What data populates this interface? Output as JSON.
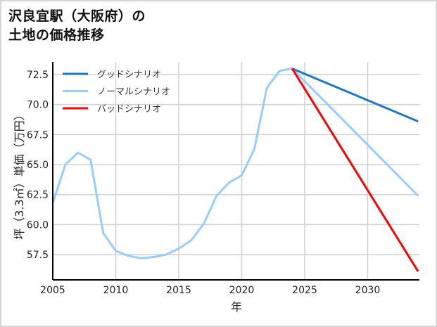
{
  "header": {
    "title_line1": "沢良宜駅（大阪府）の",
    "title_line2": "土地の価格推移"
  },
  "chart_data": {
    "type": "line",
    "title": "沢良宜駅（大阪府）の土地の価格推移",
    "xlabel": "年",
    "ylabel": "坪（3.3㎡）単価（万円）",
    "xlim": [
      2005,
      2034
    ],
    "ylim": [
      55.3,
      73.6
    ],
    "x_ticks": [
      2005,
      2010,
      2015,
      2020,
      2025,
      2030
    ],
    "y_ticks": [
      57.5,
      60.0,
      62.5,
      65.0,
      67.5,
      70.0,
      72.5
    ],
    "y_tick_labels": [
      "57.5",
      "60.0",
      "62.5",
      "65.0",
      "67.5",
      "70.0",
      "72.5"
    ],
    "grid": true,
    "legend_position": "upper left",
    "series": [
      {
        "name": "グッドシナリオ",
        "color": "#1f77c8",
        "x": [
          2024,
          2034
        ],
        "values": [
          73.0,
          68.6
        ]
      },
      {
        "name": "ノーマルシナリオ",
        "color": "#99ccff",
        "x": [
          2005,
          2006,
          2007,
          2008,
          2009,
          2010,
          2011,
          2012,
          2013,
          2014,
          2015,
          2016,
          2017,
          2018,
          2019,
          2020,
          2021,
          2022,
          2023,
          2024,
          2034
        ],
        "values": [
          61.8,
          65.0,
          66.0,
          65.4,
          59.3,
          57.8,
          57.4,
          57.2,
          57.3,
          57.5,
          58.0,
          58.7,
          60.1,
          62.4,
          63.5,
          64.1,
          66.3,
          71.4,
          72.8,
          73.0,
          62.4
        ]
      },
      {
        "name": "バッドシナリオ",
        "color": "#ff0000",
        "x": [
          2024,
          2034
        ],
        "values": [
          73.0,
          56.1
        ]
      }
    ]
  }
}
